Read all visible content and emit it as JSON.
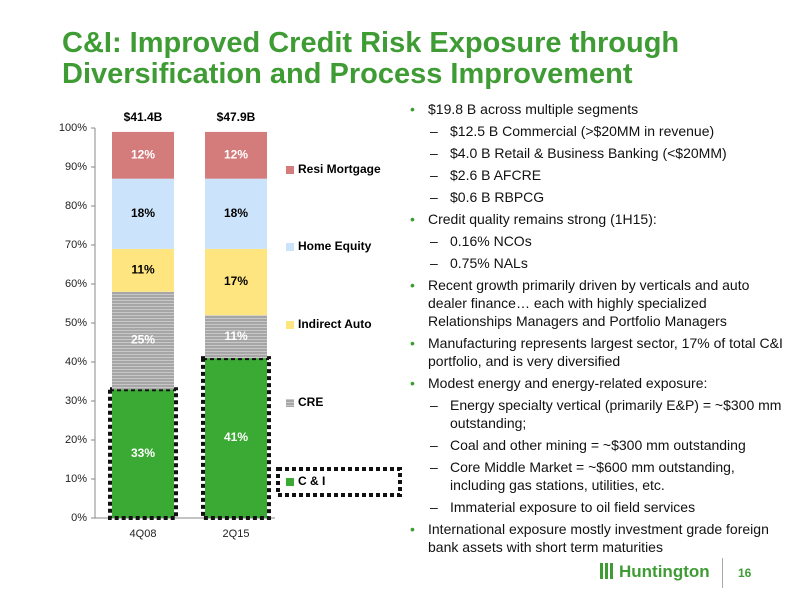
{
  "title": [
    "C&I: Improved Credit Risk Exposure through",
    "Diversification and Process Improvement"
  ],
  "chart_data": {
    "type": "stacked_bar",
    "categories": [
      "4Q08",
      "2Q15"
    ],
    "annotations": [
      "$41.4B",
      "$47.9B"
    ],
    "series": [
      {
        "name": "C & I",
        "color": "#3aaa35",
        "values": [
          33,
          41
        ],
        "value_labels": [
          "33%",
          "41%"
        ]
      },
      {
        "name": "CRE",
        "color": "#a6a6a6",
        "values": [
          25,
          11
        ],
        "value_labels": [
          "25%",
          "11%"
        ]
      },
      {
        "name": "Indirect Auto",
        "color": "#ffe57f",
        "values": [
          11,
          17
        ],
        "value_labels": [
          "11%",
          "17%"
        ]
      },
      {
        "name": "Home Equity",
        "color": "#cce4fb",
        "values": [
          18,
          18
        ],
        "value_labels": [
          "18%",
          "18%"
        ]
      },
      {
        "name": "Resi Mortgage",
        "color": "#d47c7c",
        "values": [
          12,
          12
        ],
        "value_labels": [
          "12%",
          "12%"
        ]
      }
    ],
    "ylim": [
      0,
      100
    ],
    "yticks": [
      {
        "value": 0,
        "label": "0%"
      },
      {
        "value": 10,
        "label": "10%"
      },
      {
        "value": 20,
        "label": "20%"
      },
      {
        "value": 30,
        "label": "30%"
      },
      {
        "value": 40,
        "label": "40%"
      },
      {
        "value": 50,
        "label": "50%"
      },
      {
        "value": 60,
        "label": "60%"
      },
      {
        "value": 70,
        "label": "70%"
      },
      {
        "value": 80,
        "label": "80%"
      },
      {
        "value": 90,
        "label": "90%"
      },
      {
        "value": 100,
        "label": "100%"
      }
    ],
    "legend": "right",
    "highlight": "C & I"
  },
  "bullets": [
    {
      "text": "$19.8 B across multiple segments",
      "sub": [
        "$12.5 B Commercial (>$20MM in revenue)",
        "$4.0 B Retail & Business Banking (<$20MM)",
        "$2.6 B AFCRE",
        "$0.6 B RBPCG"
      ]
    },
    {
      "text": "Credit quality remains strong (1H15):",
      "sub": [
        "0.16% NCOs",
        "0.75% NALs"
      ]
    },
    {
      "text": "Recent growth primarily driven by verticals and auto dealer finance… each with highly specialized Relationships Managers and Portfolio Managers",
      "sub": []
    },
    {
      "text": "Manufacturing represents largest sector, 17% of total C&I portfolio, and is very diversified",
      "sub": []
    },
    {
      "text": "Modest energy and energy-related exposure:",
      "sub": [
        "Energy specialty vertical (primarily E&P) = ~$300 mm outstanding;",
        "Coal and other mining = ~$300 mm outstanding",
        "Core Middle Market = ~$600 mm outstanding, including gas stations, utilities, etc.",
        "Immaterial exposure to oil field services"
      ]
    },
    {
      "text": "International exposure mostly investment grade foreign bank assets with short term maturities",
      "sub": []
    }
  ],
  "footer": {
    "logo": "Huntington",
    "page": "16"
  }
}
